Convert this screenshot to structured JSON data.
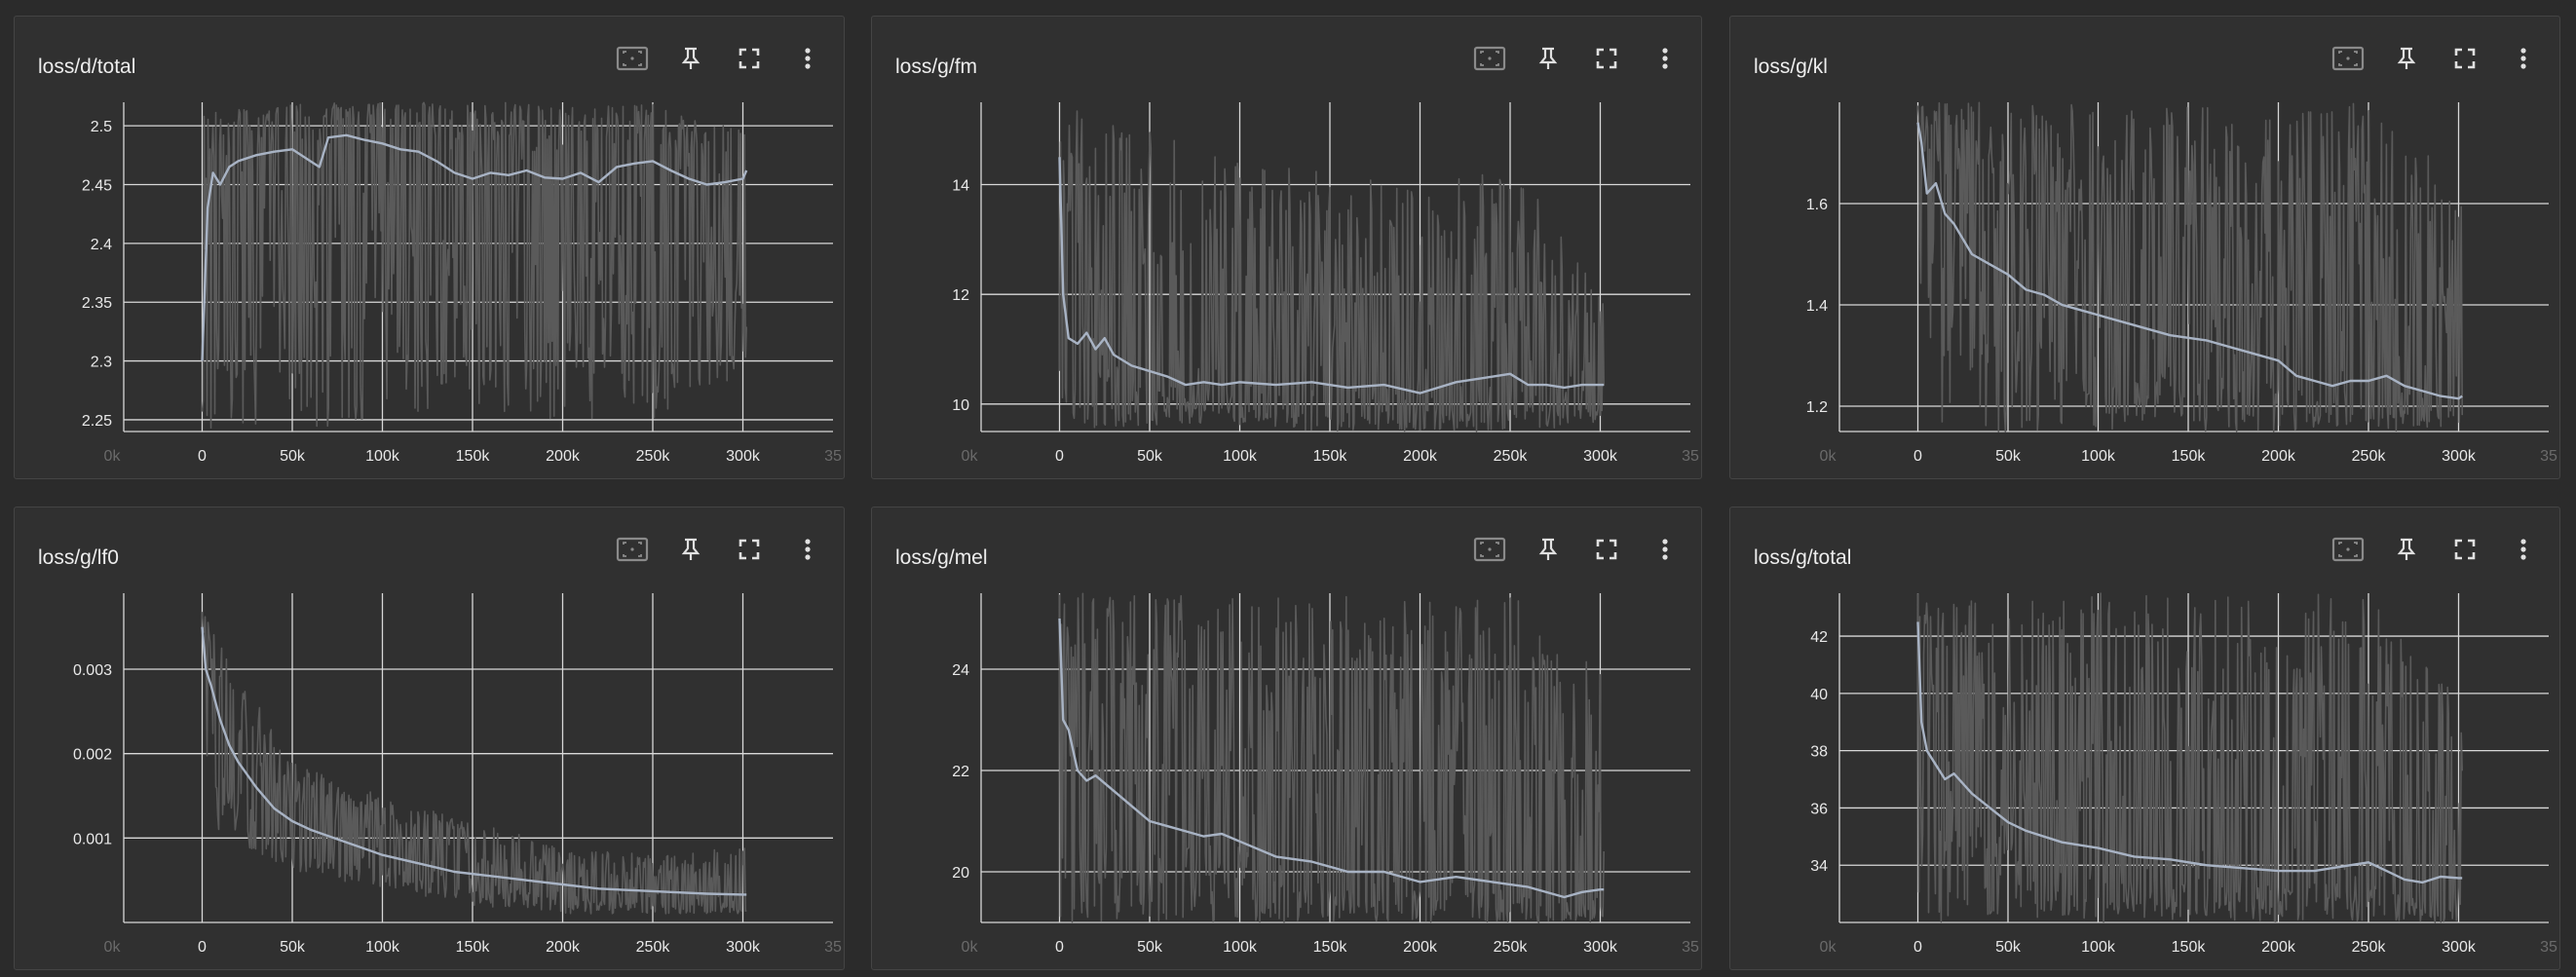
{
  "colors": {
    "background": "#2b2b2b",
    "card": "#303030",
    "grid": "#d8d8d8",
    "raw_series": "#5a5a5a",
    "smoothed_series": "#a8b3c4"
  },
  "toolbar_icons": [
    "fit-domain-icon",
    "pin-icon",
    "fullscreen-icon",
    "more-vert-icon"
  ],
  "charts": [
    {
      "title": "loss/d/total",
      "y_ticks": [
        "2.25",
        "2.3",
        "2.35",
        "2.4",
        "2.45",
        "2.5"
      ],
      "x_ticks": [
        "0k",
        "0",
        "50k",
        "100k",
        "150k",
        "200k",
        "250k",
        "300k",
        "35"
      ]
    },
    {
      "title": "loss/g/fm",
      "y_ticks": [
        "10",
        "12",
        "14"
      ],
      "x_ticks": [
        "0k",
        "0",
        "50k",
        "100k",
        "150k",
        "200k",
        "250k",
        "300k",
        "35"
      ]
    },
    {
      "title": "loss/g/kl",
      "y_ticks": [
        "1.2",
        "1.4",
        "1.6"
      ],
      "x_ticks": [
        "0k",
        "0",
        "50k",
        "100k",
        "150k",
        "200k",
        "250k",
        "300k",
        "35"
      ]
    },
    {
      "title": "loss/g/lf0",
      "y_ticks": [
        "0.001",
        "0.002",
        "0.003"
      ],
      "x_ticks": [
        "0k",
        "0",
        "50k",
        "100k",
        "150k",
        "200k",
        "250k",
        "300k",
        "35"
      ]
    },
    {
      "title": "loss/g/mel",
      "y_ticks": [
        "20",
        "22",
        "24"
      ],
      "x_ticks": [
        "0k",
        "0",
        "50k",
        "100k",
        "150k",
        "200k",
        "250k",
        "300k",
        "35"
      ]
    },
    {
      "title": "loss/g/total",
      "y_ticks": [
        "34",
        "36",
        "38",
        "40",
        "42"
      ],
      "x_ticks": [
        "0k",
        "0",
        "50k",
        "100k",
        "150k",
        "200k",
        "250k",
        "300k",
        "35"
      ]
    }
  ],
  "chart_data": [
    {
      "type": "line",
      "title": "loss/d/total",
      "xlabel": "",
      "ylabel": "",
      "xlim": [
        -50000,
        350000
      ],
      "ylim": [
        2.24,
        2.52
      ],
      "grid": true,
      "smoothed": {
        "x": [
          0,
          3000,
          6000,
          10000,
          15000,
          20000,
          30000,
          40000,
          50000,
          60000,
          65000,
          70000,
          80000,
          90000,
          100000,
          110000,
          120000,
          130000,
          140000,
          150000,
          160000,
          170000,
          180000,
          190000,
          200000,
          210000,
          220000,
          230000,
          240000,
          250000,
          260000,
          270000,
          280000,
          290000,
          300000,
          302000
        ],
        "y": [
          2.3,
          2.43,
          2.46,
          2.45,
          2.465,
          2.47,
          2.475,
          2.478,
          2.48,
          2.47,
          2.465,
          2.49,
          2.492,
          2.488,
          2.485,
          2.48,
          2.478,
          2.47,
          2.46,
          2.455,
          2.46,
          2.458,
          2.462,
          2.456,
          2.455,
          2.46,
          2.452,
          2.465,
          2.468,
          2.47,
          2.462,
          2.455,
          2.45,
          2.452,
          2.455,
          2.462
        ]
      },
      "raw_range": {
        "x": [
          0,
          50000,
          100000,
          150000,
          200000,
          250000,
          300000
        ],
        "low": [
          2.24,
          2.24,
          2.25,
          2.26,
          2.25,
          2.25,
          2.29
        ],
        "high": [
          2.52,
          2.52,
          2.52,
          2.52,
          2.52,
          2.52,
          2.5
        ]
      }
    },
    {
      "type": "line",
      "title": "loss/g/fm",
      "xlabel": "",
      "ylabel": "",
      "xlim": [
        -50000,
        350000
      ],
      "ylim": [
        9.5,
        15.5
      ],
      "grid": true,
      "smoothed": {
        "x": [
          0,
          2000,
          5000,
          10000,
          15000,
          20000,
          25000,
          30000,
          40000,
          50000,
          60000,
          70000,
          80000,
          90000,
          100000,
          120000,
          140000,
          160000,
          180000,
          200000,
          220000,
          240000,
          250000,
          260000,
          270000,
          280000,
          290000,
          300000,
          302000
        ],
        "y": [
          14.5,
          12.0,
          11.2,
          11.1,
          11.3,
          11.0,
          11.2,
          10.9,
          10.7,
          10.6,
          10.5,
          10.35,
          10.4,
          10.35,
          10.4,
          10.35,
          10.4,
          10.3,
          10.35,
          10.2,
          10.4,
          10.5,
          10.55,
          10.35,
          10.35,
          10.3,
          10.35,
          10.35,
          10.35
        ]
      },
      "raw_range": {
        "x": [
          0,
          50000,
          100000,
          150000,
          200000,
          250000,
          300000
        ],
        "low": [
          9.5,
          9.6,
          9.6,
          9.5,
          9.5,
          9.5,
          9.6
        ],
        "high": [
          15.5,
          15.0,
          14.5,
          14.2,
          14.0,
          14.5,
          12.0
        ]
      }
    },
    {
      "type": "line",
      "title": "loss/g/kl",
      "xlabel": "",
      "ylabel": "",
      "xlim": [
        -50000,
        350000
      ],
      "ylim": [
        1.15,
        1.8
      ],
      "grid": true,
      "smoothed": {
        "x": [
          0,
          2000,
          5000,
          10000,
          15000,
          20000,
          30000,
          40000,
          50000,
          60000,
          70000,
          80000,
          90000,
          100000,
          120000,
          140000,
          160000,
          180000,
          200000,
          210000,
          220000,
          230000,
          240000,
          250000,
          260000,
          270000,
          280000,
          290000,
          300000,
          302000
        ],
        "y": [
          1.76,
          1.72,
          1.62,
          1.64,
          1.58,
          1.56,
          1.5,
          1.48,
          1.46,
          1.43,
          1.42,
          1.4,
          1.39,
          1.38,
          1.36,
          1.34,
          1.33,
          1.31,
          1.29,
          1.26,
          1.25,
          1.24,
          1.25,
          1.25,
          1.26,
          1.24,
          1.23,
          1.22,
          1.215,
          1.22
        ]
      },
      "raw_range": {
        "x": [
          0,
          50000,
          100000,
          150000,
          200000,
          250000,
          300000
        ],
        "low": [
          1.15,
          1.15,
          1.15,
          1.15,
          1.15,
          1.15,
          1.15
        ],
        "high": [
          1.8,
          1.8,
          1.8,
          1.8,
          1.8,
          1.8,
          1.65
        ]
      }
    },
    {
      "type": "line",
      "title": "loss/g/lf0",
      "xlabel": "",
      "ylabel": "",
      "xlim": [
        -50000,
        350000
      ],
      "ylim": [
        0.0,
        0.0039
      ],
      "grid": true,
      "smoothed": {
        "x": [
          0,
          2000,
          5000,
          10000,
          15000,
          20000,
          30000,
          40000,
          50000,
          60000,
          80000,
          100000,
          120000,
          140000,
          160000,
          180000,
          200000,
          220000,
          240000,
          260000,
          280000,
          300000,
          302000
        ],
        "y": [
          0.0035,
          0.003,
          0.0028,
          0.0024,
          0.0021,
          0.0019,
          0.0016,
          0.00135,
          0.0012,
          0.0011,
          0.00095,
          0.0008,
          0.0007,
          0.0006,
          0.00055,
          0.0005,
          0.00045,
          0.0004,
          0.00038,
          0.00036,
          0.00034,
          0.00033,
          0.00033
        ]
      },
      "raw_range": {
        "x": [
          0,
          50000,
          100000,
          150000,
          200000,
          250000,
          300000
        ],
        "low": [
          0.0012,
          0.0006,
          0.0004,
          0.0002,
          0.0001,
          0.0001,
          0.0001
        ],
        "high": [
          0.0037,
          0.0019,
          0.0015,
          0.0012,
          0.0009,
          0.0008,
          0.0009
        ]
      }
    },
    {
      "type": "line",
      "title": "loss/g/mel",
      "xlabel": "",
      "ylabel": "",
      "xlim": [
        -50000,
        350000
      ],
      "ylim": [
        19.0,
        25.5
      ],
      "grid": true,
      "smoothed": {
        "x": [
          0,
          2000,
          5000,
          10000,
          15000,
          20000,
          30000,
          40000,
          50000,
          60000,
          70000,
          80000,
          90000,
          100000,
          120000,
          140000,
          160000,
          180000,
          200000,
          220000,
          240000,
          260000,
          280000,
          290000,
          300000,
          302000
        ],
        "y": [
          25.0,
          23.0,
          22.8,
          22.0,
          21.8,
          21.9,
          21.6,
          21.3,
          21.0,
          20.9,
          20.8,
          20.7,
          20.75,
          20.6,
          20.3,
          20.2,
          20.0,
          20.0,
          19.8,
          19.9,
          19.8,
          19.7,
          19.5,
          19.6,
          19.65,
          19.65
        ]
      },
      "raw_range": {
        "x": [
          0,
          50000,
          100000,
          150000,
          200000,
          250000,
          300000
        ],
        "low": [
          19.0,
          19.0,
          19.0,
          19.0,
          19.0,
          19.0,
          19.0
        ],
        "high": [
          25.5,
          25.5,
          25.5,
          25.5,
          25.5,
          25.5,
          24.0
        ]
      }
    },
    {
      "type": "line",
      "title": "loss/g/total",
      "xlabel": "",
      "ylabel": "",
      "xlim": [
        -50000,
        350000
      ],
      "ylim": [
        32.0,
        43.5
      ],
      "grid": true,
      "smoothed": {
        "x": [
          0,
          2000,
          5000,
          10000,
          15000,
          20000,
          30000,
          40000,
          50000,
          60000,
          70000,
          80000,
          100000,
          120000,
          140000,
          160000,
          180000,
          200000,
          220000,
          240000,
          250000,
          260000,
          270000,
          280000,
          290000,
          300000,
          302000
        ],
        "y": [
          42.5,
          39.0,
          38.0,
          37.5,
          37.0,
          37.2,
          36.5,
          36.0,
          35.5,
          35.2,
          35.0,
          34.8,
          34.6,
          34.3,
          34.2,
          34.0,
          33.9,
          33.8,
          33.8,
          34.0,
          34.1,
          33.8,
          33.5,
          33.4,
          33.6,
          33.55,
          33.55
        ]
      },
      "raw_range": {
        "x": [
          0,
          50000,
          100000,
          150000,
          200000,
          250000,
          300000
        ],
        "low": [
          32.0,
          32.0,
          32.0,
          32.0,
          32.0,
          32.0,
          32.0
        ],
        "high": [
          43.5,
          43.5,
          43.5,
          43.5,
          43.5,
          43.5,
          40.0
        ]
      }
    }
  ]
}
